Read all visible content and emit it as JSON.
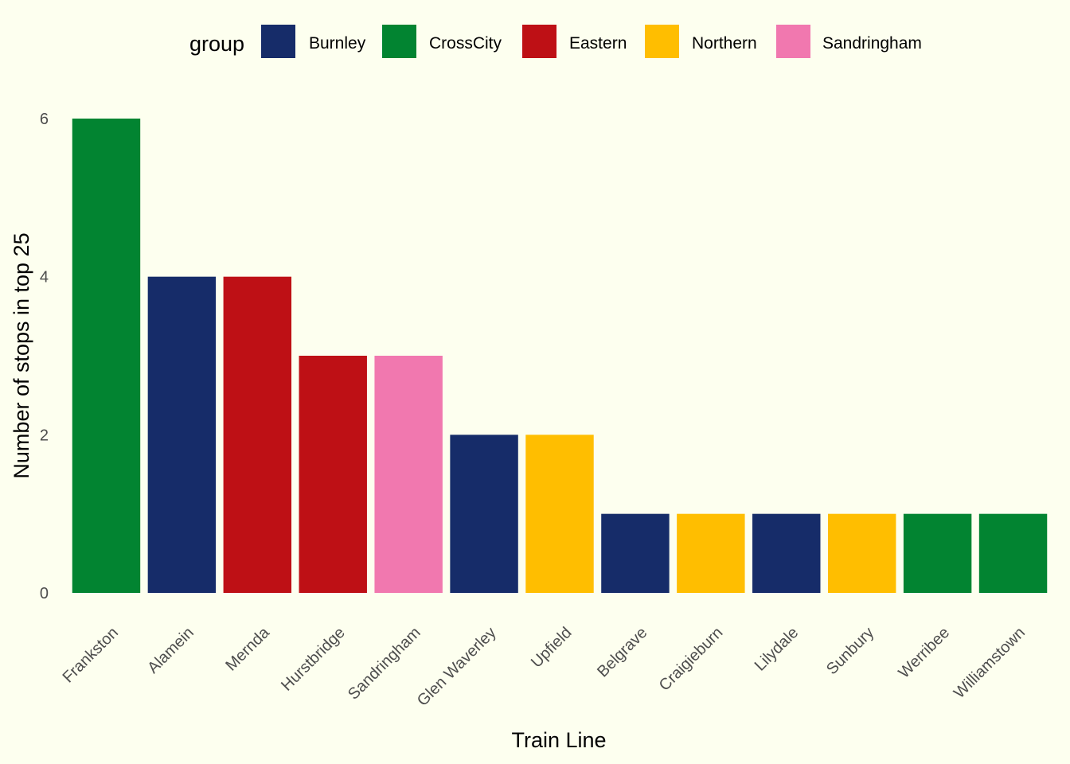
{
  "chart_data": {
    "type": "bar",
    "title": "",
    "xlabel": "Train Line",
    "ylabel": "Number of stops in top 25",
    "ylim": [
      0,
      6
    ],
    "yticks": [
      0,
      2,
      4,
      6
    ],
    "grid": false,
    "legend": {
      "title": "group",
      "placement": "top",
      "entries": [
        {
          "name": "Burnley",
          "color": "#162C69"
        },
        {
          "name": "CrossCity",
          "color": "#028431"
        },
        {
          "name": "Eastern",
          "color": "#BE1015"
        },
        {
          "name": "Northern",
          "color": "#FFBE00"
        },
        {
          "name": "Sandringham",
          "color": "#F178AF"
        }
      ]
    },
    "categories": [
      "Frankston",
      "Alamein",
      "Mernda",
      "Hurstbridge",
      "Sandringham",
      "Glen Waverley",
      "Upfield",
      "Belgrave",
      "Craigieburn",
      "Lilydale",
      "Sunbury",
      "Werribee",
      "Williamstown"
    ],
    "values": [
      6,
      4,
      4,
      3,
      3,
      2,
      2,
      1,
      1,
      1,
      1,
      1,
      1
    ],
    "groups": [
      "CrossCity",
      "Burnley",
      "Eastern",
      "Eastern",
      "Sandringham",
      "Burnley",
      "Northern",
      "Burnley",
      "Northern",
      "Burnley",
      "Northern",
      "CrossCity",
      "CrossCity"
    ]
  }
}
